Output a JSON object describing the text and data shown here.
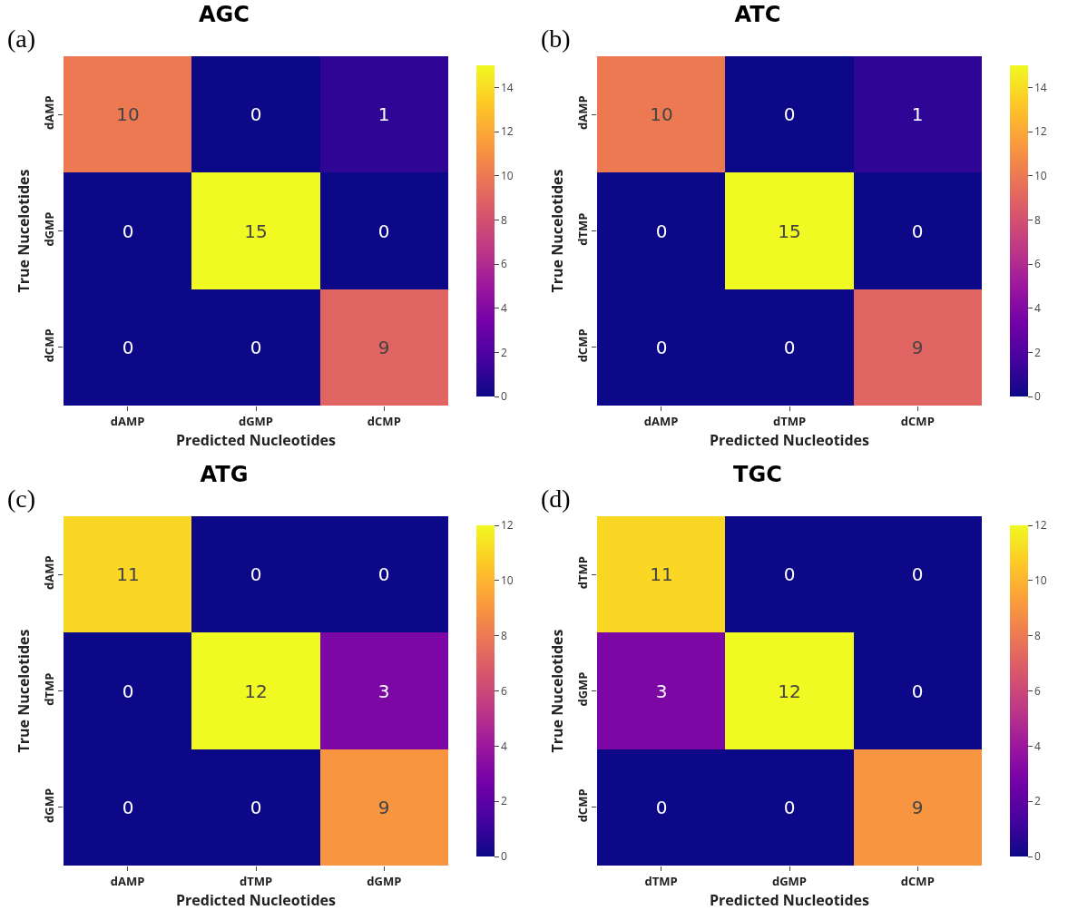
{
  "chart_data": [
    {
      "type": "heatmap",
      "title": "AGC",
      "xlabel": "Predicted Nucleotides",
      "ylabel": "True Nucelotides",
      "annotations": [
        "(a)"
      ],
      "categories": [
        "dAMP",
        "dGMP",
        "dCMP"
      ],
      "y_categories": [
        "dAMP",
        "dGMP",
        "dCMP"
      ],
      "cells": [
        [
          10,
          0,
          1
        ],
        [
          0,
          15,
          0
        ],
        [
          0,
          0,
          9
        ]
      ],
      "clim": [
        0,
        15
      ],
      "cticks": [
        0,
        2,
        4,
        6,
        8,
        10,
        12,
        14
      ],
      "data_labels": true
    },
    {
      "type": "heatmap",
      "title": "ATC",
      "xlabel": "Predicted Nucleotides",
      "ylabel": "True Nucelotides",
      "annotations": [
        "(b)"
      ],
      "categories": [
        "dAMP",
        "dTMP",
        "dCMP"
      ],
      "y_categories": [
        "dAMP",
        "dTMP",
        "dCMP"
      ],
      "cells": [
        [
          10,
          0,
          1
        ],
        [
          0,
          15,
          0
        ],
        [
          0,
          0,
          9
        ]
      ],
      "clim": [
        0,
        15
      ],
      "cticks": [
        0,
        2,
        4,
        6,
        8,
        10,
        12,
        14
      ],
      "data_labels": true
    },
    {
      "type": "heatmap",
      "title": "ATG",
      "xlabel": "Predicted Nucleotides",
      "ylabel": "True Nucelotides",
      "annotations": [
        "(c)"
      ],
      "categories": [
        "dAMP",
        "dTMP",
        "dGMP"
      ],
      "y_categories": [
        "dAMP",
        "dTMP",
        "dGMP"
      ],
      "cells": [
        [
          11,
          0,
          0
        ],
        [
          0,
          12,
          3
        ],
        [
          0,
          0,
          9
        ]
      ],
      "clim": [
        0,
        12
      ],
      "cticks": [
        0,
        2,
        4,
        6,
        8,
        10,
        12
      ],
      "data_labels": true
    },
    {
      "type": "heatmap",
      "title": "TGC",
      "xlabel": "Predicted Nucleotides",
      "ylabel": "True Nucelotides",
      "annotations": [
        "(d)"
      ],
      "categories": [
        "dTMP",
        "dGMP",
        "dCMP"
      ],
      "y_categories": [
        "dTMP",
        "dGMP",
        "dCMP"
      ],
      "cells": [
        [
          11,
          0,
          0
        ],
        [
          3,
          12,
          0
        ],
        [
          0,
          0,
          9
        ]
      ],
      "clim": [
        0,
        12
      ],
      "cticks": [
        0,
        2,
        4,
        6,
        8,
        10,
        12
      ],
      "data_labels": true
    }
  ]
}
